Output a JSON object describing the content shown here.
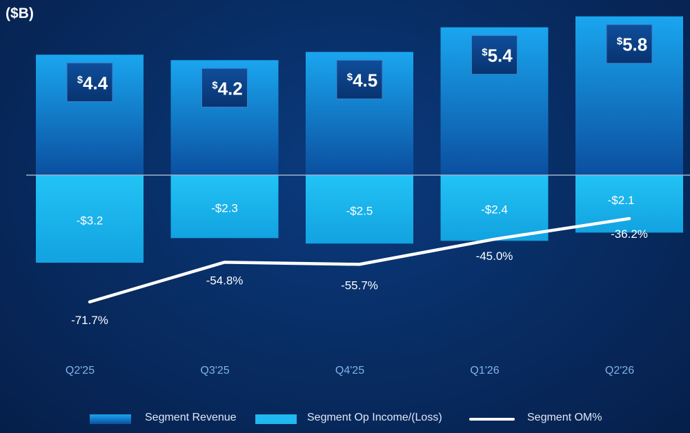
{
  "unit_label": "($B)",
  "legend": {
    "revenue_label": "Segment Revenue",
    "op_income_label": "Segment Op Income/(Loss)",
    "om_label": "Segment OM%"
  },
  "colors": {
    "revenue_top": "#1aa6ef",
    "revenue_bottom": "#0b4f9f",
    "op_income": "#1fb8f0",
    "om_line": "#ffffff",
    "value_box": "#0a3f86",
    "tick_text": "#7fb4e6"
  },
  "chart_data": {
    "type": "bar",
    "categories": [
      "Q2'25",
      "Q3'25",
      "Q4'25",
      "Q1'26",
      "Q2'26"
    ],
    "series": [
      {
        "name": "Segment Revenue",
        "values": [
          4.4,
          4.2,
          4.5,
          5.4,
          5.8
        ],
        "labels": [
          "4.4",
          "4.2",
          "4.5",
          "5.4",
          "5.8"
        ]
      },
      {
        "name": "Segment Op Income/(Loss)",
        "values": [
          -3.2,
          -2.3,
          -2.5,
          -2.4,
          -2.1
        ],
        "labels": [
          "-$3.2",
          "-$2.3",
          "-$2.5",
          "-$2.4",
          "-$2.1"
        ]
      },
      {
        "name": "Segment OM%",
        "type": "line",
        "values": [
          -71.7,
          -54.8,
          -55.7,
          -45.0,
          -36.2
        ],
        "labels": [
          "-71.7%",
          "-54.8%",
          "-55.7%",
          "-45.0%",
          "-36.2%"
        ]
      }
    ],
    "ylabel": "($B)",
    "grid": false,
    "legend_position": "bottom"
  }
}
